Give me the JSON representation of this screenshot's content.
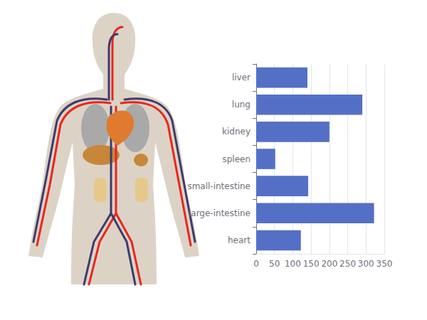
{
  "chart_data": {
    "type": "bar",
    "orientation": "horizontal",
    "categories": [
      "liver",
      "lung",
      "kidney",
      "spleen",
      "small-intestine",
      "large-intestine",
      "heart"
    ],
    "values": [
      140,
      290,
      200,
      52,
      142,
      322,
      122
    ],
    "color": "#5470c6",
    "xlim": [
      0,
      350
    ],
    "xticks": [
      0,
      50,
      100,
      150,
      200,
      250,
      300,
      350
    ],
    "grid": true
  }
}
